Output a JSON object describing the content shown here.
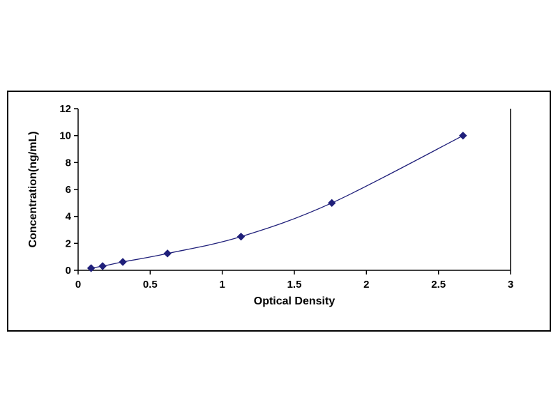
{
  "chart_data": {
    "type": "line",
    "title": "",
    "xlabel": "Optical Density",
    "ylabel": "Concentration(ng/mL)",
    "x": [
      0.09,
      0.17,
      0.31,
      0.62,
      1.13,
      1.76,
      2.67
    ],
    "y": [
      0.16,
      0.31,
      0.62,
      1.25,
      2.5,
      5,
      10
    ],
    "xlim": [
      0,
      3
    ],
    "ylim": [
      0,
      12
    ],
    "xticks": [
      0,
      0.5,
      1,
      1.5,
      2,
      2.5,
      3
    ],
    "yticks": [
      0,
      2,
      4,
      6,
      8,
      10,
      12
    ],
    "marker": "diamond",
    "legend": "none",
    "grid": false,
    "colors": {
      "line": "#1f1f7a",
      "marker": "#1f1f7a",
      "axis": "#000000",
      "frame_border": "#000000",
      "background": "#ffffff"
    }
  }
}
